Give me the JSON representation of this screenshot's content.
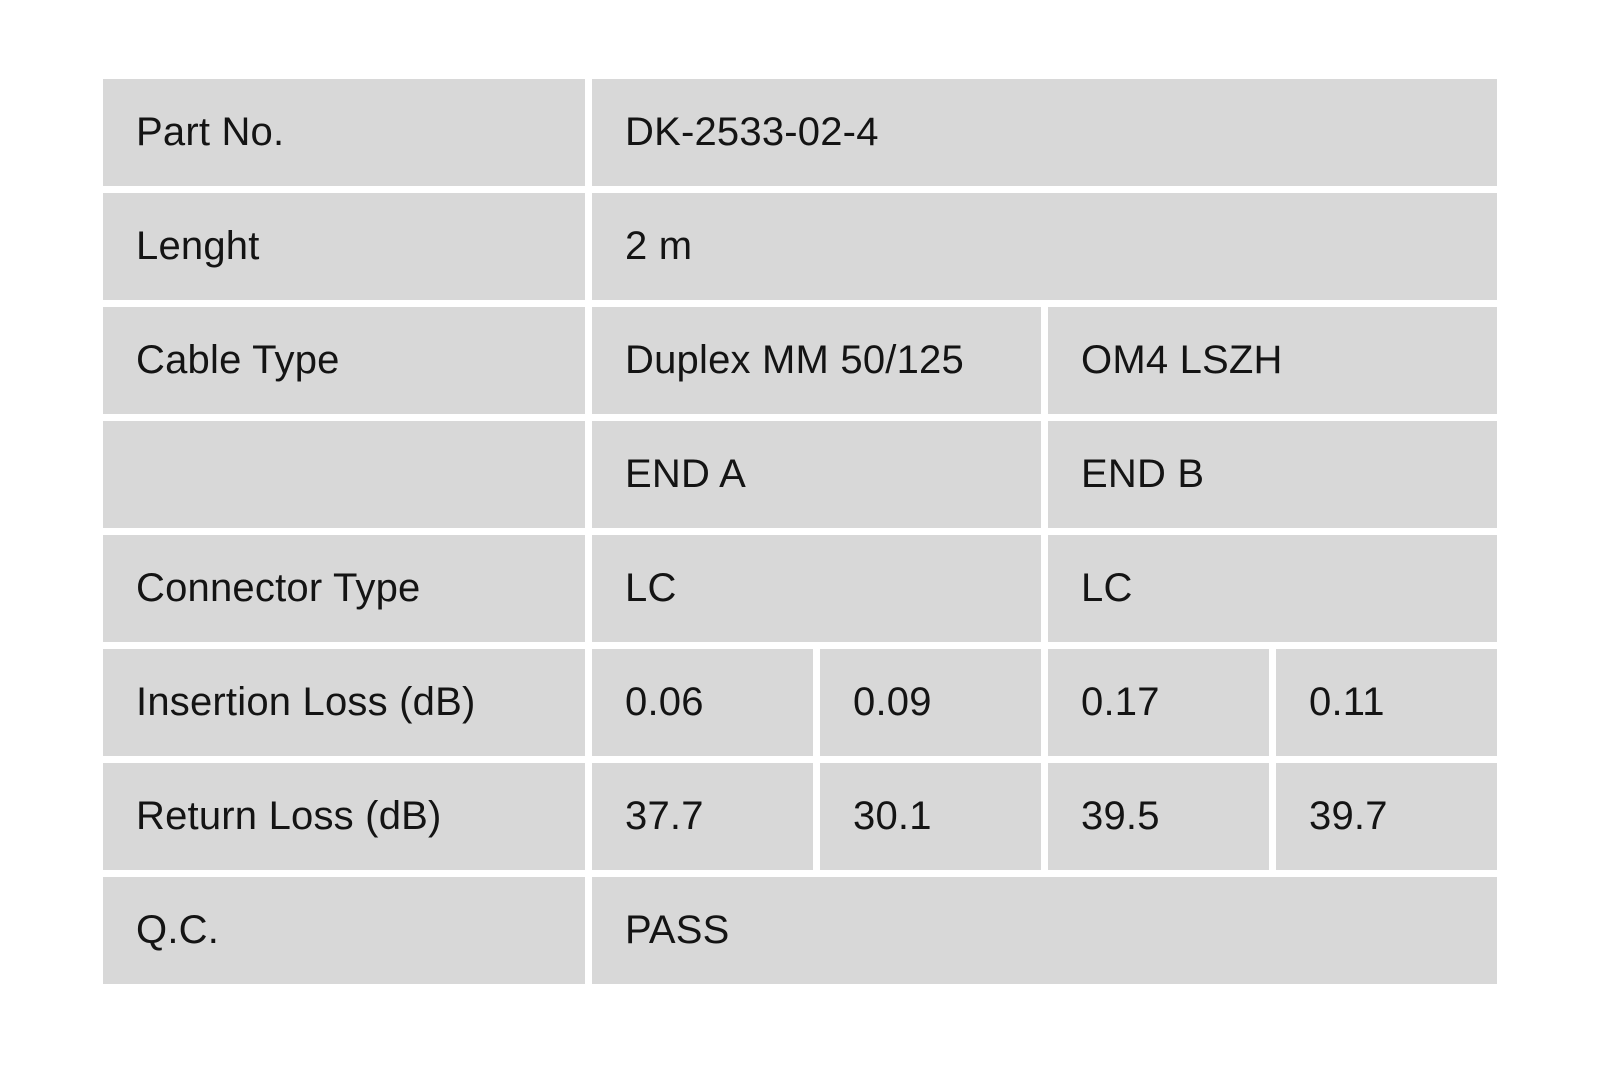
{
  "colors": {
    "cell_background": "#d8d8d8",
    "page_background": "#ffffff",
    "text": "#141414"
  },
  "table": {
    "part_no": {
      "label": "Part No.",
      "value": "DK-2533-02-4"
    },
    "length": {
      "label": "Lenght",
      "value": "2 m"
    },
    "cable_type": {
      "label": "Cable Type",
      "value_left": "Duplex MM 50/125",
      "value_right": "OM4 LSZH"
    },
    "ends": {
      "label": "",
      "end_a": "END A",
      "end_b": "END B"
    },
    "connector_type": {
      "label": "Connector Type",
      "end_a": "LC",
      "end_b": "LC"
    },
    "insertion_loss": {
      "label": "Insertion Loss (dB)",
      "values": [
        "0.06",
        "0.09",
        "0.17",
        "0.11"
      ]
    },
    "return_loss": {
      "label": "Return Loss (dB)",
      "values": [
        "37.7",
        "30.1",
        "39.5",
        "39.7"
      ]
    },
    "qc": {
      "label": "Q.C.",
      "value": "PASS"
    }
  }
}
